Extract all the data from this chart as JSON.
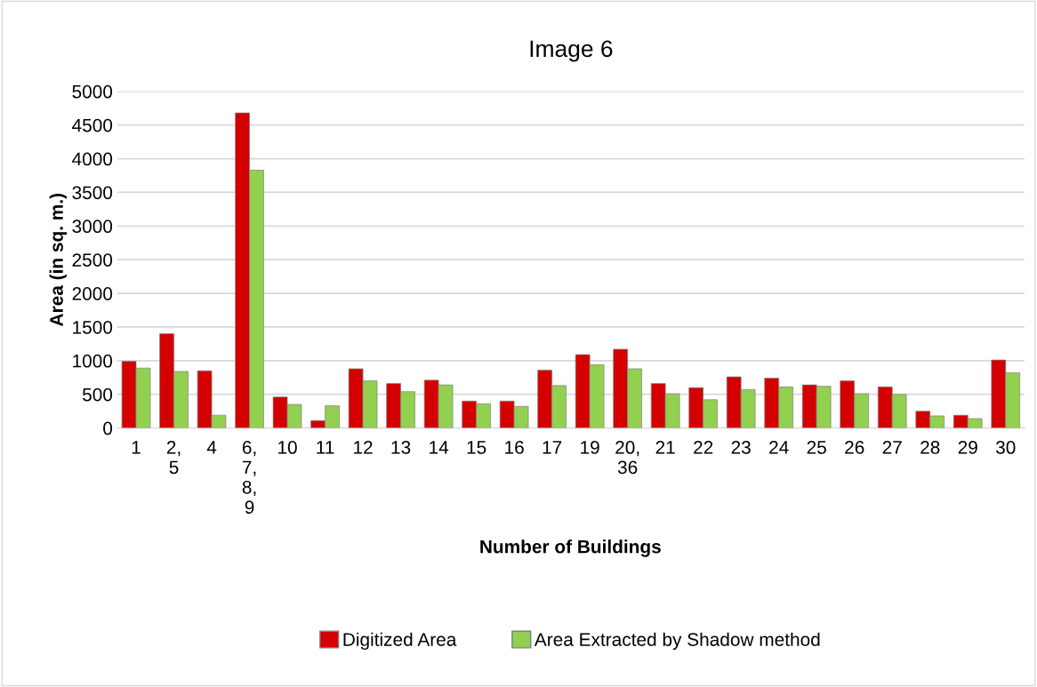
{
  "chart_data": {
    "type": "bar",
    "title": "Image 6",
    "xlabel": "Number of Buildings",
    "ylabel": "Area (in sq. m.)",
    "categories": [
      "1",
      "2, 5",
      "4",
      "6, 7, 8, 9",
      "10",
      "11",
      "12",
      "13",
      "14",
      "15",
      "16",
      "17",
      "19",
      "20, 36",
      "21",
      "22",
      "23",
      "24",
      "25",
      "26",
      "27",
      "28",
      "29",
      "30"
    ],
    "series": [
      {
        "name": "Digitized Area",
        "color": "#d40000",
        "values": [
          990,
          1400,
          850,
          4680,
          460,
          110,
          880,
          660,
          710,
          400,
          400,
          860,
          1090,
          1170,
          660,
          600,
          760,
          740,
          640,
          700,
          610,
          250,
          190,
          1010
        ]
      },
      {
        "name": "Area Extracted by Shadow method",
        "color": "#92d050",
        "values": [
          890,
          840,
          190,
          3830,
          350,
          330,
          700,
          540,
          640,
          360,
          320,
          630,
          940,
          880,
          510,
          420,
          570,
          610,
          620,
          510,
          500,
          180,
          140,
          820
        ]
      }
    ],
    "ylim": [
      0,
      5000
    ],
    "yticks": [
      0,
      500,
      1000,
      1500,
      2000,
      2500,
      3000,
      3500,
      4000,
      4500,
      5000
    ],
    "grid": "y",
    "legend": "bottom"
  }
}
